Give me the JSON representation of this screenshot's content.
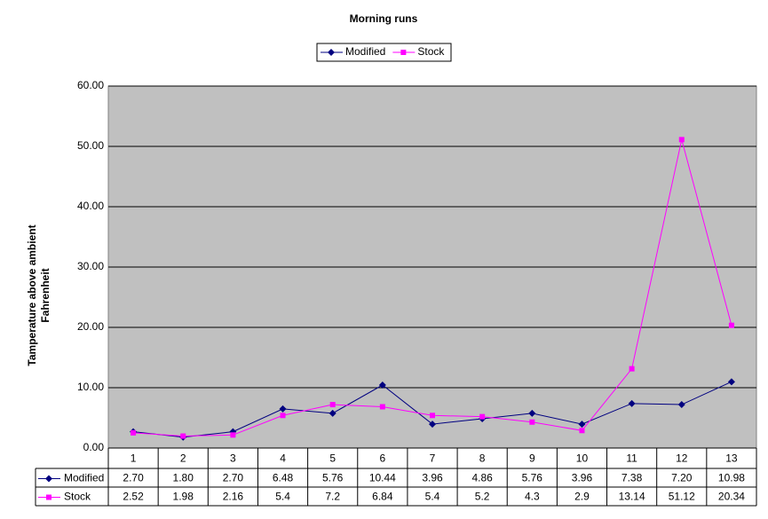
{
  "chart_data": {
    "type": "line",
    "title": "Morning runs",
    "ylabel": [
      "Tamperature above ambient",
      "Fahrenheit"
    ],
    "categories": [
      "1",
      "2",
      "3",
      "4",
      "5",
      "6",
      "7",
      "8",
      "9",
      "10",
      "11",
      "12",
      "13"
    ],
    "series": [
      {
        "name": "Modified",
        "color": "#000080",
        "marker": "diamond",
        "values": [
          2.7,
          1.8,
          2.7,
          6.48,
          5.76,
          10.44,
          3.96,
          4.86,
          5.76,
          3.96,
          7.38,
          7.2,
          10.98
        ],
        "value_labels": [
          "2.70",
          "1.80",
          "2.70",
          "6.48",
          "5.76",
          "10.44",
          "3.96",
          "4.86",
          "5.76",
          "3.96",
          "7.38",
          "7.20",
          "10.98"
        ]
      },
      {
        "name": "Stock",
        "color": "#ff00ff",
        "marker": "square",
        "values": [
          2.52,
          1.98,
          2.16,
          5.4,
          7.2,
          6.84,
          5.4,
          5.2,
          4.3,
          2.9,
          13.14,
          51.12,
          20.34
        ]
      }
    ],
    "ylim": [
      0,
      60
    ],
    "yticks": [
      {
        "value": 0,
        "label": "0.00"
      },
      {
        "value": 10,
        "label": "10.00"
      },
      {
        "value": 20,
        "label": "20.00"
      },
      {
        "value": 30,
        "label": "30.00"
      },
      {
        "value": 40,
        "label": "40.00"
      },
      {
        "value": 50,
        "label": "50.00"
      },
      {
        "value": 60,
        "label": "60.00"
      }
    ],
    "grid": true,
    "plot_background": "#c0c0c0",
    "legend": "top"
  }
}
